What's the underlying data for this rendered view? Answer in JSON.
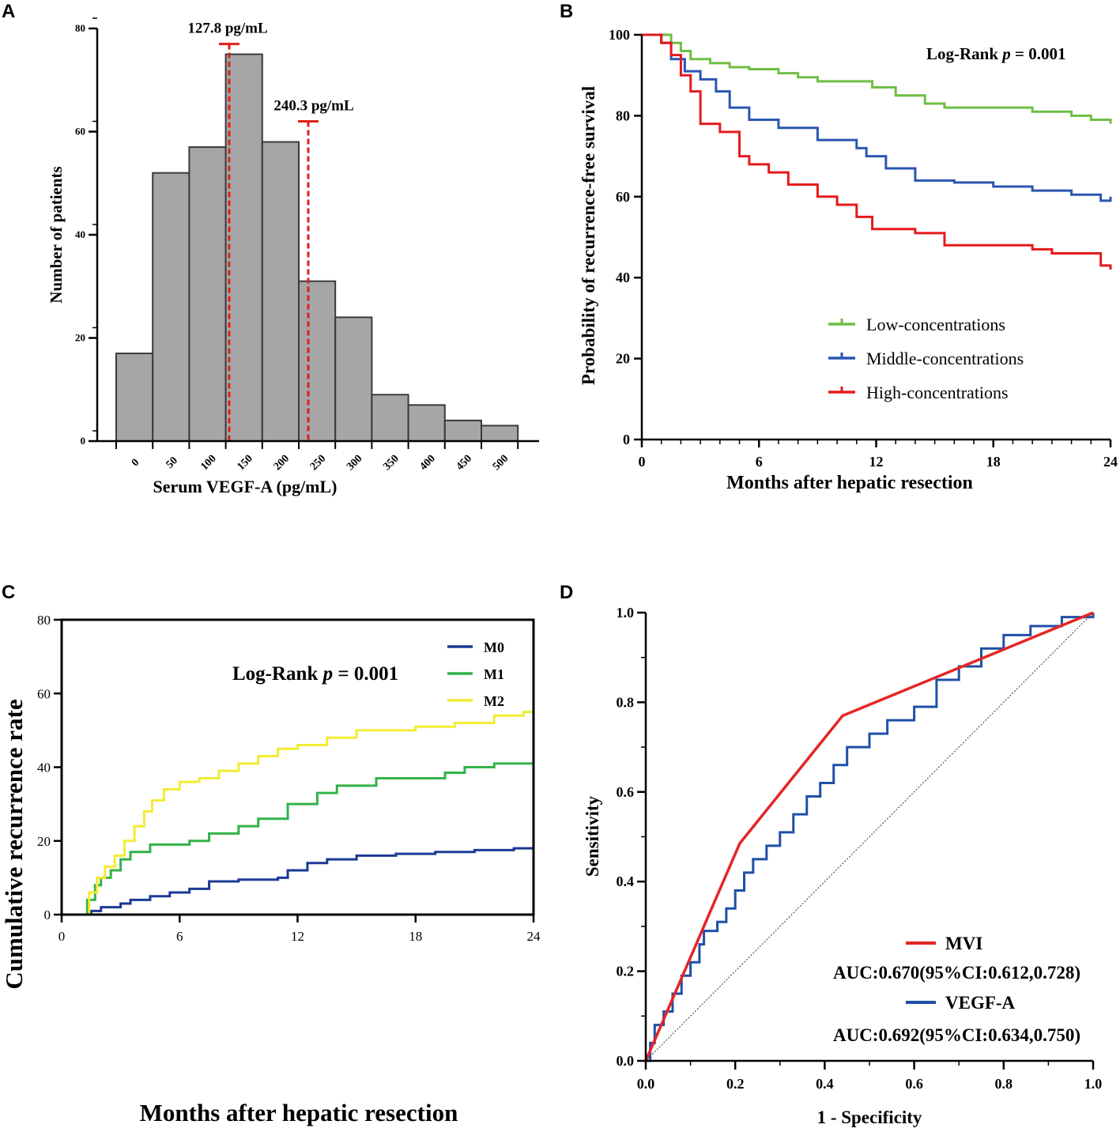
{
  "panels": {
    "a": {
      "letter": "A"
    },
    "b": {
      "letter": "B"
    },
    "c": {
      "letter": "C"
    },
    "d": {
      "letter": "D"
    }
  },
  "chart_data": [
    {
      "panel": "A",
      "type": "bar",
      "xlabel": "Serum VEGF-A (pg/mL)",
      "ylabel": "Number of patients",
      "categories": [
        "0",
        "50",
        "100",
        "150",
        "200",
        "250",
        "300",
        "350",
        "400",
        "450",
        "500"
      ],
      "values": [
        17,
        52,
        57,
        75,
        58,
        31,
        24,
        9,
        7,
        4,
        3
      ],
      "ylim": [
        0,
        80
      ],
      "yticks": [
        "0",
        "20",
        "40",
        "60",
        "80"
      ],
      "bar_color": "#a6a6a8",
      "cutoffs": [
        {
          "label": "127.8 pg/mL",
          "value": 127.8,
          "height": 77
        },
        {
          "label": "240.3 pg/mL",
          "value": 240.3,
          "height": 62
        }
      ],
      "cutoff_color": "#e0201b"
    },
    {
      "panel": "B",
      "type": "line",
      "xlabel": "Months after hepatic resection",
      "ylabel": "Probability of recurrence-free survival",
      "xlim": [
        0,
        24
      ],
      "ylim": [
        0,
        100
      ],
      "xticks": [
        "0",
        "6",
        "12",
        "18",
        "24"
      ],
      "yticks": [
        "0",
        "20",
        "40",
        "60",
        "80",
        "100"
      ],
      "annotation": {
        "prefix": "Log-Rank ",
        "p": "p",
        "suffix": " = 0.001"
      },
      "legend_position": "lower-center",
      "series": [
        {
          "name": "Low-concentrations",
          "color": "#6fbe44",
          "points": [
            [
              0,
              100
            ],
            [
              1.3,
              100
            ],
            [
              1.5,
              98
            ],
            [
              2,
              96
            ],
            [
              2.5,
              94
            ],
            [
              3.5,
              93
            ],
            [
              4.5,
              92
            ],
            [
              5.5,
              91.5
            ],
            [
              7,
              90.5
            ],
            [
              8,
              89.5
            ],
            [
              9,
              88.5
            ],
            [
              11,
              88.5
            ],
            [
              11.8,
              87
            ],
            [
              13,
              85
            ],
            [
              14.5,
              83
            ],
            [
              15.5,
              82
            ],
            [
              18,
              82
            ],
            [
              20,
              81
            ],
            [
              22,
              80
            ],
            [
              23,
              79
            ],
            [
              24,
              78
            ]
          ]
        },
        {
          "name": "Middle-concentrations",
          "color": "#2b56b0",
          "points": [
            [
              0,
              100
            ],
            [
              0.8,
              100
            ],
            [
              1,
              98
            ],
            [
              1.5,
              94
            ],
            [
              2.2,
              91
            ],
            [
              3,
              89
            ],
            [
              3.8,
              86
            ],
            [
              4.5,
              82
            ],
            [
              5.5,
              79
            ],
            [
              7,
              77
            ],
            [
              9,
              74
            ],
            [
              11,
              72
            ],
            [
              11.5,
              70
            ],
            [
              12.5,
              67
            ],
            [
              14,
              64
            ],
            [
              16,
              63.5
            ],
            [
              18,
              62.5
            ],
            [
              20,
              61.5
            ],
            [
              22,
              60.5
            ],
            [
              23.5,
              59
            ],
            [
              24,
              60
            ]
          ]
        },
        {
          "name": "High-concentrations",
          "color": "#e41a1c",
          "points": [
            [
              0,
              100
            ],
            [
              1,
              98
            ],
            [
              1.5,
              95
            ],
            [
              2,
              90
            ],
            [
              2.5,
              86
            ],
            [
              3,
              78
            ],
            [
              4,
              76
            ],
            [
              5,
              70
            ],
            [
              5.5,
              68
            ],
            [
              6.5,
              66
            ],
            [
              7.5,
              63
            ],
            [
              9,
              60
            ],
            [
              10,
              58
            ],
            [
              11,
              55
            ],
            [
              11.8,
              52
            ],
            [
              14,
              51
            ],
            [
              15.5,
              48
            ],
            [
              18,
              48
            ],
            [
              20,
              47
            ],
            [
              21,
              46
            ],
            [
              23,
              46
            ],
            [
              23.5,
              43
            ],
            [
              24,
              42
            ]
          ]
        }
      ]
    },
    {
      "panel": "C",
      "type": "line",
      "xlabel": "Months after hepatic resection",
      "ylabel": "Cumulative recurrence rate",
      "xlim": [
        0,
        24
      ],
      "ylim": [
        0,
        80
      ],
      "xticks": [
        "0",
        "6",
        "12",
        "18",
        "24"
      ],
      "yticks": [
        "0",
        "20",
        "40",
        "60",
        "80"
      ],
      "annotation": {
        "prefix": "Log-Rank ",
        "p": "p",
        "suffix": " = 0.001"
      },
      "legend_position": "top-right",
      "series": [
        {
          "name": "M0",
          "color": "#1a3a94",
          "points": [
            [
              0,
              0
            ],
            [
              1.1,
              0
            ],
            [
              1.5,
              1
            ],
            [
              2,
              2
            ],
            [
              3,
              3
            ],
            [
              3.5,
              4
            ],
            [
              4.5,
              5
            ],
            [
              5.5,
              6
            ],
            [
              6.5,
              7
            ],
            [
              7.5,
              9
            ],
            [
              9,
              9.5
            ],
            [
              11,
              10
            ],
            [
              11.5,
              12
            ],
            [
              12.5,
              14
            ],
            [
              13.5,
              15
            ],
            [
              15,
              16
            ],
            [
              17,
              16.5
            ],
            [
              19,
              17
            ],
            [
              21,
              17.5
            ],
            [
              23,
              18
            ],
            [
              24,
              19.5
            ]
          ]
        },
        {
          "name": "M1",
          "color": "#33b24a",
          "points": [
            [
              0,
              0
            ],
            [
              1,
              0
            ],
            [
              1.3,
              4
            ],
            [
              1.7,
              8
            ],
            [
              2,
              10
            ],
            [
              2.5,
              12
            ],
            [
              3,
              15
            ],
            [
              3.5,
              17
            ],
            [
              4.5,
              19
            ],
            [
              6.5,
              20
            ],
            [
              7.5,
              22
            ],
            [
              9,
              24
            ],
            [
              10,
              26
            ],
            [
              11.5,
              30
            ],
            [
              13,
              33
            ],
            [
              14,
              35
            ],
            [
              16,
              37
            ],
            [
              19.5,
              38.5
            ],
            [
              20.5,
              40
            ],
            [
              22,
              41
            ],
            [
              24,
              43
            ]
          ]
        },
        {
          "name": "M2",
          "color": "#f2ec35",
          "points": [
            [
              0,
              0
            ],
            [
              1,
              0
            ],
            [
              1.4,
              6
            ],
            [
              1.8,
              10
            ],
            [
              2.2,
              13
            ],
            [
              2.7,
              16
            ],
            [
              3.2,
              20
            ],
            [
              3.7,
              24
            ],
            [
              4.2,
              28
            ],
            [
              4.6,
              31
            ],
            [
              5.2,
              34
            ],
            [
              6,
              36
            ],
            [
              7,
              37
            ],
            [
              8,
              39
            ],
            [
              9,
              41
            ],
            [
              10,
              43
            ],
            [
              11,
              45
            ],
            [
              12,
              46
            ],
            [
              13.5,
              48
            ],
            [
              15,
              50
            ],
            [
              18,
              51
            ],
            [
              20,
              52
            ],
            [
              22,
              54
            ],
            [
              23.5,
              55
            ],
            [
              24,
              58
            ]
          ]
        }
      ]
    },
    {
      "panel": "D",
      "type": "line",
      "xlabel": "1 - Specificity",
      "ylabel": "Sensitivity",
      "xlim": [
        0,
        1
      ],
      "ylim": [
        0,
        1
      ],
      "xticks": [
        "0.0",
        "0.2",
        "0.4",
        "0.6",
        "0.8",
        "1.0"
      ],
      "yticks": [
        "0.0",
        "0.2",
        "0.4",
        "0.6",
        "0.8",
        "1.0"
      ],
      "reference_line": true,
      "legend_position": "bottom-right",
      "series": [
        {
          "name": "MVI",
          "auc": "AUC:0.670(95%CI:0.612,0.728)",
          "color": "#e52525",
          "points": [
            [
              0,
              0
            ],
            [
              0.21,
              0.485
            ],
            [
              0.44,
              0.77
            ],
            [
              1,
              1
            ]
          ]
        },
        {
          "name": "VEGF-A",
          "auc": "AUC:0.692(95%CI:0.634,0.750)",
          "color": "#1f4fa8",
          "points": [
            [
              0,
              0
            ],
            [
              0.01,
              0.04
            ],
            [
              0.02,
              0.08
            ],
            [
              0.04,
              0.11
            ],
            [
              0.06,
              0.15
            ],
            [
              0.08,
              0.19
            ],
            [
              0.1,
              0.22
            ],
            [
              0.12,
              0.26
            ],
            [
              0.13,
              0.29
            ],
            [
              0.16,
              0.31
            ],
            [
              0.18,
              0.34
            ],
            [
              0.2,
              0.38
            ],
            [
              0.22,
              0.42
            ],
            [
              0.24,
              0.45
            ],
            [
              0.27,
              0.48
            ],
            [
              0.3,
              0.51
            ],
            [
              0.33,
              0.55
            ],
            [
              0.36,
              0.59
            ],
            [
              0.39,
              0.62
            ],
            [
              0.42,
              0.66
            ],
            [
              0.45,
              0.7
            ],
            [
              0.5,
              0.73
            ],
            [
              0.54,
              0.76
            ],
            [
              0.6,
              0.79
            ],
            [
              0.65,
              0.85
            ],
            [
              0.7,
              0.88
            ],
            [
              0.75,
              0.92
            ],
            [
              0.8,
              0.95
            ],
            [
              0.86,
              0.97
            ],
            [
              0.93,
              0.99
            ],
            [
              1,
              1
            ]
          ]
        }
      ]
    }
  ]
}
